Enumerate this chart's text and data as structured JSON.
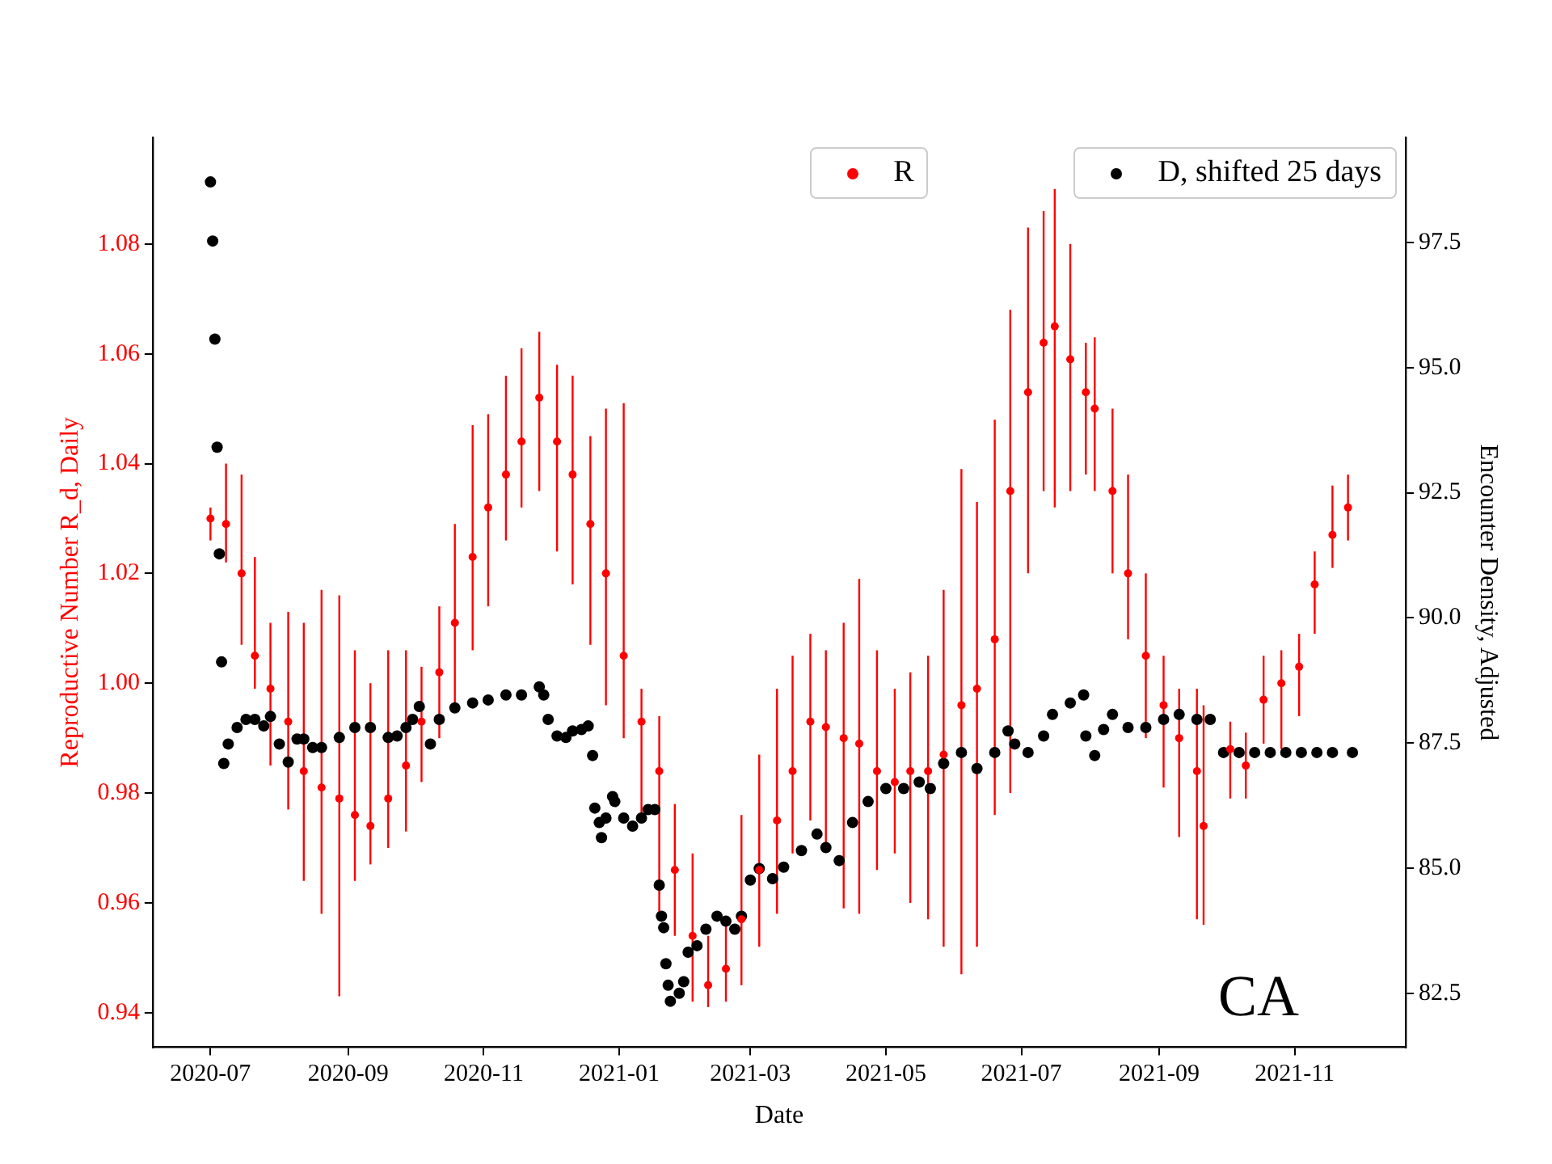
{
  "chart_data": {
    "type": "scatter",
    "xlabel": "Date",
    "ylabel": "Reproductive Number R_d, Daily",
    "y2label": "Encounter Density, Adjusted",
    "marker": "circle",
    "legend": "top right",
    "annotations": [
      "CA"
    ],
    "xlim": [
      "2020-06-05",
      "2021-12-21"
    ],
    "xticks": [
      {
        "value": "2020-07-01",
        "label": "2020-07"
      },
      {
        "value": "2020-09-01",
        "label": "2020-09"
      },
      {
        "value": "2020-11-01",
        "label": "2020-11"
      },
      {
        "value": "2021-01-01",
        "label": "2021-01"
      },
      {
        "value": "2021-03-01",
        "label": "2021-03"
      },
      {
        "value": "2021-05-01",
        "label": "2021-05"
      },
      {
        "value": "2021-07-01",
        "label": "2021-07"
      },
      {
        "value": "2021-09-01",
        "label": "2021-09"
      },
      {
        "value": "2021-11-01",
        "label": "2021-11"
      }
    ],
    "ylim": [
      0.9337,
      1.0994
    ],
    "yticks": [
      0.94,
      0.96,
      0.98,
      {
        "value": 1,
        "label": "1.00"
      },
      1.02,
      1.04,
      1.06,
      1.08
    ],
    "y2lim": [
      81.42,
      99.6
    ],
    "y2ticks": [
      82.5,
      {
        "value": 85,
        "label": "85.0"
      },
      87.5,
      {
        "value": 90,
        "label": "90.0"
      },
      92.5,
      {
        "value": 95,
        "label": "95.0"
      },
      97.5
    ],
    "series": [
      {
        "name": "R",
        "color": "#ff0000",
        "x": [
          "2020-07-01",
          "2020-07-08",
          "2020-07-15",
          "2020-07-21",
          "2020-07-28",
          "2020-08-05",
          "2020-08-12",
          "2020-08-20",
          "2020-08-28",
          "2020-09-04",
          "2020-09-11",
          "2020-09-19",
          "2020-09-27",
          "2020-10-04",
          "2020-10-12",
          "2020-10-19",
          "2020-10-27",
          "2020-11-03",
          "2020-11-11",
          "2020-11-18",
          "2020-11-26",
          "2020-12-04",
          "2020-12-11",
          "2020-12-19",
          "2020-12-26",
          "2021-01-03",
          "2021-01-11",
          "2021-01-19",
          "2021-01-26",
          "2021-02-03",
          "2021-02-10",
          "2021-02-18",
          "2021-02-25",
          "2021-03-05",
          "2021-03-13",
          "2021-03-20",
          "2021-03-28",
          "2021-04-04",
          "2021-04-12",
          "2021-04-19",
          "2021-04-27",
          "2021-05-05",
          "2021-05-12",
          "2021-05-20",
          "2021-05-27",
          "2021-06-04",
          "2021-06-11",
          "2021-06-19",
          "2021-06-26",
          "2021-07-04",
          "2021-07-11",
          "2021-07-16",
          "2021-07-23",
          "2021-07-30",
          "2021-08-03",
          "2021-08-11",
          "2021-08-18",
          "2021-08-26",
          "2021-09-03",
          "2021-09-10",
          "2021-09-18",
          "2021-09-21",
          "2021-10-03",
          "2021-10-10",
          "2021-10-18",
          "2021-10-26",
          "2021-11-03",
          "2021-11-10",
          "2021-11-18",
          "2021-11-25"
        ],
        "values": [
          1.03,
          1.029,
          1.02,
          1.005,
          0.999,
          0.993,
          0.984,
          0.981,
          0.979,
          0.976,
          0.974,
          0.979,
          0.985,
          0.993,
          1.002,
          1.011,
          1.023,
          1.032,
          1.038,
          1.044,
          1.052,
          1.044,
          1.038,
          1.029,
          1.02,
          1.005,
          0.993,
          0.984,
          0.966,
          0.954,
          0.945,
          0.948,
          0.957,
          0.966,
          0.975,
          0.984,
          0.993,
          0.992,
          0.99,
          0.989,
          0.984,
          0.982,
          0.984,
          0.984,
          0.987,
          0.996,
          0.999,
          1.008,
          1.035,
          1.053,
          1.062,
          1.065,
          1.059,
          1.053,
          1.05,
          1.035,
          1.02,
          1.005,
          0.996,
          0.99,
          0.984,
          0.974,
          0.988,
          0.985,
          0.997,
          1.0,
          1.003,
          1.018,
          1.027,
          1.032
        ],
        "errors": [
          [
            1.026,
            1.032
          ],
          [
            1.022,
            1.04
          ],
          [
            1.007,
            1.038
          ],
          [
            0.999,
            1.023
          ],
          [
            0.985,
            1.011
          ],
          [
            0.977,
            1.013
          ],
          [
            0.964,
            1.011
          ],
          [
            0.958,
            1.017
          ],
          [
            0.943,
            1.016
          ],
          [
            0.964,
            1.006
          ],
          [
            0.967,
            1.0
          ],
          [
            0.97,
            1.006
          ],
          [
            0.973,
            1.006
          ],
          [
            0.982,
            1.003
          ],
          [
            0.99,
            1.014
          ],
          [
            0.996,
            1.029
          ],
          [
            1.006,
            1.047
          ],
          [
            1.014,
            1.049
          ],
          [
            1.026,
            1.056
          ],
          [
            1.032,
            1.061
          ],
          [
            1.035,
            1.064
          ],
          [
            1.024,
            1.058
          ],
          [
            1.018,
            1.056
          ],
          [
            1.007,
            1.045
          ],
          [
            0.996,
            1.05
          ],
          [
            0.99,
            1.051
          ],
          [
            0.976,
            0.999
          ],
          [
            0.958,
            0.994
          ],
          [
            0.954,
            0.978
          ],
          [
            0.942,
            0.969
          ],
          [
            0.941,
            0.954
          ],
          [
            0.942,
            0.957
          ],
          [
            0.945,
            0.976
          ],
          [
            0.952,
            0.987
          ],
          [
            0.958,
            0.999
          ],
          [
            0.969,
            1.005
          ],
          [
            0.975,
            1.009
          ],
          [
            0.97,
            1.006
          ],
          [
            0.959,
            1.011
          ],
          [
            0.958,
            1.019
          ],
          [
            0.966,
            1.006
          ],
          [
            0.969,
            0.999
          ],
          [
            0.96,
            1.002
          ],
          [
            0.957,
            1.005
          ],
          [
            0.952,
            1.017
          ],
          [
            0.947,
            1.039
          ],
          [
            0.952,
            1.033
          ],
          [
            0.976,
            1.048
          ],
          [
            0.98,
            1.068
          ],
          [
            1.02,
            1.083
          ],
          [
            1.035,
            1.086
          ],
          [
            1.032,
            1.09
          ],
          [
            1.035,
            1.08
          ],
          [
            1.038,
            1.062
          ],
          [
            1.035,
            1.063
          ],
          [
            1.02,
            1.05
          ],
          [
            1.008,
            1.038
          ],
          [
            0.99,
            1.02
          ],
          [
            0.981,
            1.005
          ],
          [
            0.972,
            0.999
          ],
          [
            0.957,
            0.999
          ],
          [
            0.956,
            0.996
          ],
          [
            0.979,
            0.993
          ],
          [
            0.979,
            0.991
          ],
          [
            0.989,
            1.005
          ],
          [
            0.988,
            1.006
          ],
          [
            0.994,
            1.009
          ],
          [
            1.009,
            1.024
          ],
          [
            1.021,
            1.036
          ],
          [
            1.026,
            1.038
          ]
        ]
      },
      {
        "name": "D, shifted 25 days",
        "color": "#000000",
        "axis": "y2",
        "x": [
          "2020-07-01",
          "2020-07-02",
          "2020-07-03",
          "2020-07-04",
          "2020-07-05",
          "2020-07-06",
          "2020-07-07",
          "2020-07-09",
          "2020-07-13",
          "2020-07-17",
          "2020-07-21",
          "2020-07-25",
          "2020-07-28",
          "2020-08-01",
          "2020-08-05",
          "2020-08-09",
          "2020-08-12",
          "2020-08-16",
          "2020-08-20",
          "2020-08-28",
          "2020-09-04",
          "2020-09-11",
          "2020-09-19",
          "2020-09-23",
          "2020-09-27",
          "2020-09-30",
          "2020-10-03",
          "2020-10-08",
          "2020-10-12",
          "2020-10-19",
          "2020-10-27",
          "2020-11-03",
          "2020-11-11",
          "2020-11-18",
          "2020-11-26",
          "2020-11-28",
          "2020-11-30",
          "2020-12-04",
          "2020-12-08",
          "2020-12-11",
          "2020-12-15",
          "2020-12-18",
          "2020-12-20",
          "2020-12-21",
          "2020-12-23",
          "2020-12-24",
          "2020-12-26",
          "2020-12-29",
          "2020-12-30",
          "2021-01-03",
          "2021-01-07",
          "2021-01-11",
          "2021-01-14",
          "2021-01-17",
          "2021-01-19",
          "2021-01-20",
          "2021-01-21",
          "2021-01-22",
          "2021-01-23",
          "2021-01-24",
          "2021-01-28",
          "2021-01-30",
          "2021-02-01",
          "2021-02-05",
          "2021-02-09",
          "2021-02-14",
          "2021-02-18",
          "2021-02-22",
          "2021-02-25",
          "2021-03-01",
          "2021-03-05",
          "2021-03-11",
          "2021-03-16",
          "2021-03-24",
          "2021-03-31",
          "2021-04-04",
          "2021-04-10",
          "2021-04-16",
          "2021-04-23",
          "2021-05-01",
          "2021-05-09",
          "2021-05-16",
          "2021-05-21",
          "2021-05-27",
          "2021-06-04",
          "2021-06-11",
          "2021-06-19",
          "2021-06-25",
          "2021-06-28",
          "2021-07-04",
          "2021-07-11",
          "2021-07-15",
          "2021-07-23",
          "2021-07-29",
          "2021-07-30",
          "2021-08-03",
          "2021-08-07",
          "2021-08-11",
          "2021-08-18",
          "2021-08-26",
          "2021-09-03",
          "2021-09-10",
          "2021-09-18",
          "2021-09-24",
          "2021-09-30",
          "2021-10-07",
          "2021-10-14",
          "2021-10-21",
          "2021-10-28",
          "2021-11-04",
          "2021-11-11",
          "2021-11-18",
          "2021-11-27"
        ],
        "values": [
          98.71,
          97.53,
          95.57,
          93.41,
          91.28,
          89.12,
          87.09,
          87.48,
          87.81,
          87.97,
          87.97,
          87.84,
          88.03,
          87.48,
          87.12,
          87.58,
          87.58,
          87.41,
          87.41,
          87.61,
          87.81,
          87.81,
          87.61,
          87.64,
          87.81,
          87.97,
          88.23,
          87.48,
          87.97,
          88.2,
          88.3,
          88.36,
          88.46,
          88.46,
          88.62,
          88.46,
          87.97,
          87.64,
          87.61,
          87.74,
          87.77,
          87.84,
          87.25,
          86.2,
          85.91,
          85.61,
          86.0,
          86.43,
          86.33,
          86.0,
          85.84,
          86.0,
          86.17,
          86.17,
          84.66,
          84.04,
          83.81,
          83.09,
          82.66,
          82.34,
          82.5,
          82.73,
          83.32,
          83.45,
          83.78,
          84.04,
          83.94,
          83.78,
          84.04,
          84.76,
          84.99,
          84.79,
          85.02,
          85.35,
          85.68,
          85.41,
          85.15,
          85.91,
          86.33,
          86.59,
          86.59,
          86.72,
          86.59,
          87.09,
          87.31,
          86.99,
          87.31,
          87.74,
          87.48,
          87.31,
          87.64,
          88.07,
          88.3,
          88.46,
          87.64,
          87.25,
          87.77,
          88.07,
          87.81,
          87.81,
          87.97,
          88.07,
          87.97,
          87.97,
          87.31,
          87.31,
          87.31,
          87.31,
          87.31,
          87.31,
          87.31,
          87.31,
          87.31
        ]
      }
    ]
  }
}
